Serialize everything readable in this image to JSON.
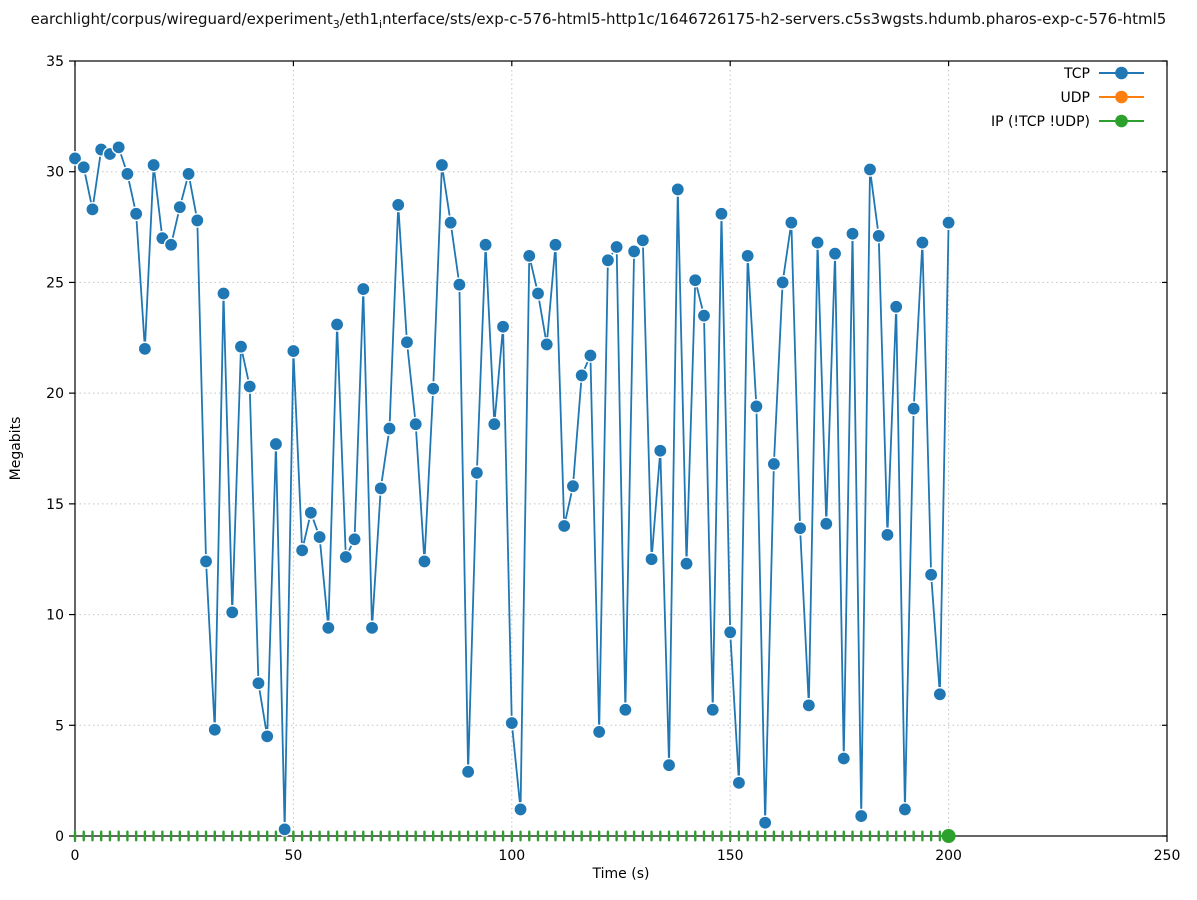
{
  "title": {
    "parts": [
      {
        "text": "earchlight/corpus/wireguard/experiment"
      },
      {
        "text": "3",
        "sub": true
      },
      {
        "text": "/eth1"
      },
      {
        "text": "i",
        "sub": true
      },
      {
        "text": "nterface/sts/exp-c-576-html5-http1c/1646726175-h2-servers.c5s3wgsts.hdumb.pharos-exp-c-576-html5"
      }
    ]
  },
  "axes": {
    "x": {
      "label": "Time (s)",
      "min": 0,
      "max": 250,
      "tick_labels": [
        "0",
        "50",
        "100",
        "150",
        "200",
        "250"
      ],
      "tick_values": [
        0,
        50,
        100,
        150,
        200,
        250
      ]
    },
    "y": {
      "label": "Megabits",
      "min": 0,
      "max": 35,
      "tick_labels": [
        "0",
        "5",
        "10",
        "15",
        "20",
        "25",
        "30",
        "35"
      ],
      "tick_values": [
        0,
        5,
        10,
        15,
        20,
        25,
        30,
        35
      ]
    },
    "grid": "dotted"
  },
  "legend": {
    "position": "top-right",
    "entries": [
      {
        "label": "TCP",
        "color": "#1f77b4"
      },
      {
        "label": "UDP",
        "color": "#ff7f0e"
      },
      {
        "label": "IP (!TCP  !UDP)",
        "color": "#2ca02c"
      }
    ]
  },
  "chart_data": {
    "type": "line",
    "title": "earchlight/corpus/wireguard/experiment_3/eth1_interface/sts/exp-c-576-html5-http1c/1646726175-h2-servers.c5s3wgsts.hdumb.pharos-exp-c-576-html5",
    "xlabel": "Time (s)",
    "ylabel": "Megabits",
    "xlim": [
      0,
      250
    ],
    "ylim": [
      0,
      35
    ],
    "grid": true,
    "legend_position": "top-right",
    "x_start": 0,
    "x_step": 2,
    "series": [
      {
        "name": "TCP",
        "color": "#1f77b4",
        "marker": "circle",
        "values": [
          30.6,
          30.2,
          28.3,
          31.0,
          30.8,
          31.1,
          29.9,
          28.1,
          22.0,
          30.3,
          27.0,
          26.7,
          28.4,
          29.9,
          27.8,
          12.4,
          4.8,
          24.5,
          10.1,
          22.1,
          20.3,
          6.9,
          4.5,
          17.7,
          0.3,
          21.9,
          12.9,
          14.6,
          13.5,
          9.4,
          23.1,
          12.6,
          13.4,
          24.7,
          9.4,
          15.7,
          18.4,
          28.5,
          22.3,
          18.6,
          12.4,
          20.2,
          30.3,
          27.7,
          24.9,
          2.9,
          16.4,
          26.7,
          18.6,
          23.0,
          5.1,
          1.2,
          26.2,
          24.5,
          22.2,
          26.7,
          14.0,
          15.8,
          20.8,
          21.7,
          4.7,
          26.0,
          26.6,
          5.7,
          26.4,
          26.9,
          12.5,
          17.4,
          3.2,
          29.2,
          12.3,
          25.1,
          23.5,
          5.7,
          28.1,
          9.2,
          2.4,
          26.2,
          19.4,
          0.6,
          16.8,
          25.0,
          27.7,
          13.9,
          5.9,
          26.8,
          14.1,
          26.3,
          3.5,
          27.2,
          0.9,
          30.1,
          27.1,
          13.6,
          23.9,
          1.2,
          19.3,
          26.8,
          11.8,
          6.4,
          27.7
        ]
      },
      {
        "name": "UDP",
        "color": "#ff7f0e",
        "marker": "circle",
        "constant_value": 0,
        "n_points": 101
      },
      {
        "name": "IP (!TCP  !UDP)",
        "color": "#2ca02c",
        "marker": "circle",
        "constant_value": 0,
        "n_points": 101
      }
    ]
  },
  "colors": {
    "tcp": "#1f77b4",
    "udp": "#ff7f0e",
    "ip": "#2ca02c",
    "grid": "#c4c4c4",
    "spine": "#000000"
  }
}
